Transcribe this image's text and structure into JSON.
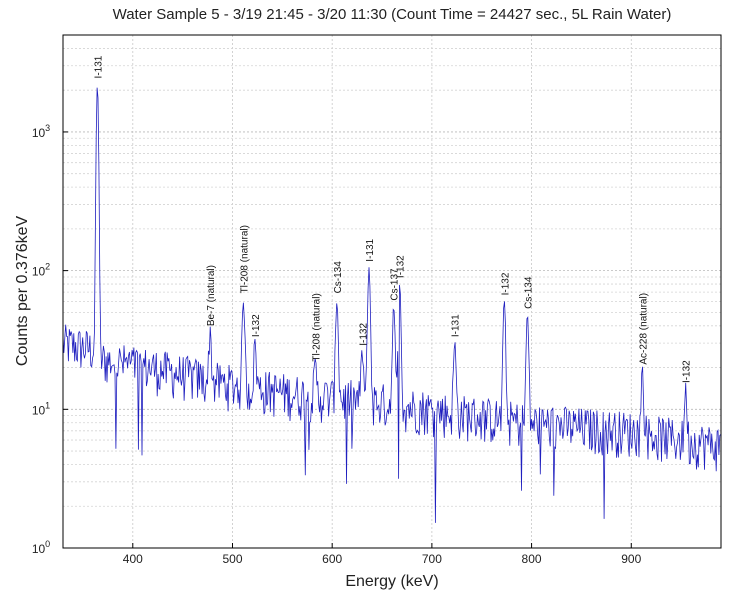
{
  "chart_data": {
    "type": "line",
    "title": "Water Sample 5 - 3/19 21:45 - 3/20 11:30 (Count Time = 24427 sec., 5L Rain Water)",
    "xlabel": "Energy (keV)",
    "ylabel": "Counts per 0.376keV",
    "xlim": [
      330,
      990
    ],
    "ylim": [
      1,
      5000
    ],
    "yscale": "log",
    "grid": true,
    "x_ticks": [
      400,
      500,
      600,
      700,
      800,
      900
    ],
    "y_ticks": [
      {
        "value": 1,
        "base": "10",
        "exp": "0"
      },
      {
        "value": 10,
        "base": "10",
        "exp": "1"
      },
      {
        "value": 100,
        "base": "10",
        "exp": "2"
      },
      {
        "value": 1000,
        "base": "10",
        "exp": "3"
      }
    ],
    "line_color": "#1f1fbf",
    "baseline": [
      {
        "x": 330,
        "y": 30
      },
      {
        "x": 362,
        "y": 27
      },
      {
        "x": 366,
        "y": 23
      },
      {
        "x": 420,
        "y": 20
      },
      {
        "x": 480,
        "y": 16
      },
      {
        "x": 560,
        "y": 13
      },
      {
        "x": 640,
        "y": 11.5
      },
      {
        "x": 720,
        "y": 9.5
      },
      {
        "x": 800,
        "y": 8
      },
      {
        "x": 900,
        "y": 7
      },
      {
        "x": 990,
        "y": 5.5
      }
    ],
    "peaks": [
      {
        "energy": 364.5,
        "counts": 2200
      },
      {
        "energy": 477.6,
        "counts": 36
      },
      {
        "energy": 511,
        "counts": 62
      },
      {
        "energy": 522.7,
        "counts": 30
      },
      {
        "energy": 583.2,
        "counts": 20
      },
      {
        "energy": 604.7,
        "counts": 62
      },
      {
        "energy": 630.2,
        "counts": 26
      },
      {
        "energy": 636.9,
        "counts": 105
      },
      {
        "energy": 661.7,
        "counts": 55
      },
      {
        "energy": 667.7,
        "counts": 80
      },
      {
        "energy": 722.9,
        "counts": 30
      },
      {
        "energy": 772.6,
        "counts": 60
      },
      {
        "energy": 795.8,
        "counts": 48
      },
      {
        "energy": 911.2,
        "counts": 19
      },
      {
        "energy": 954.6,
        "counts": 14
      }
    ],
    "annotations": [
      {
        "text": "I-131",
        "energy": 364.5,
        "counts": 2200
      },
      {
        "text": "Be-7 (natural)",
        "energy": 477.6,
        "counts": 36
      },
      {
        "text": "Tl-208 (natural)",
        "energy": 511,
        "counts": 62
      },
      {
        "text": "I-132",
        "energy": 522.7,
        "counts": 30
      },
      {
        "text": "Tl-208 (natural)",
        "energy": 583.2,
        "counts": 20
      },
      {
        "text": "Cs-134",
        "energy": 604.7,
        "counts": 62
      },
      {
        "text": "I-132",
        "energy": 630.2,
        "counts": 26
      },
      {
        "text": "I-131",
        "energy": 636.9,
        "counts": 105
      },
      {
        "text": "Cs-137",
        "energy": 661.7,
        "counts": 55
      },
      {
        "text": "I-132",
        "energy": 667.7,
        "counts": 80
      },
      {
        "text": "I-131",
        "energy": 722.9,
        "counts": 30
      },
      {
        "text": "I-132",
        "energy": 772.6,
        "counts": 60
      },
      {
        "text": "Cs-134",
        "energy": 795.8,
        "counts": 48
      },
      {
        "text": "Ac-228 (natural)",
        "energy": 911.2,
        "counts": 19
      },
      {
        "text": "I-132",
        "energy": 954.6,
        "counts": 14
      }
    ]
  }
}
